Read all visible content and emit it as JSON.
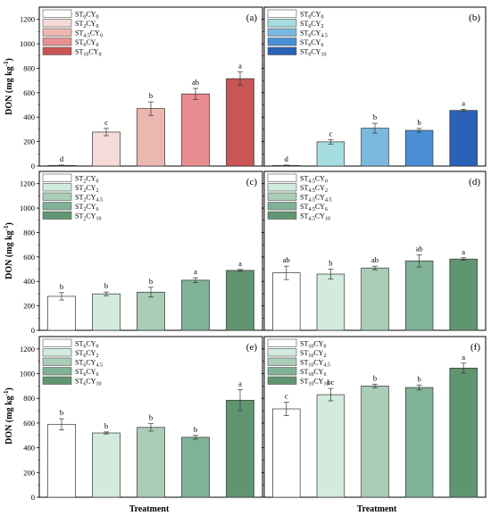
{
  "figure": {
    "ylabel": "DON (mg kg",
    "ylabel_sup": "-1",
    "ylabel_end": ")",
    "xlabel": "Treatment"
  },
  "chart_data": [
    {
      "type": "bar",
      "panel_label": "(a)",
      "ylim": [
        0,
        1300
      ],
      "yticks": [
        0,
        200,
        400,
        600,
        800,
        1000,
        1200
      ],
      "legend": "top-left",
      "categories": [
        {
          "main": "ST",
          "s1": "0",
          "mid": "CY",
          "s2": "0"
        },
        {
          "main": "ST",
          "s1": "2",
          "mid": "CY",
          "s2": "0"
        },
        {
          "main": "ST",
          "s1": "4.5",
          "mid": "CY",
          "s2": "0"
        },
        {
          "main": "ST",
          "s1": "6",
          "mid": "CY",
          "s2": "0"
        },
        {
          "main": "ST",
          "s1": "10",
          "mid": "CY",
          "s2": "0"
        }
      ],
      "values": [
        5,
        278,
        470,
        590,
        715
      ],
      "errors": [
        3,
        30,
        55,
        45,
        55
      ],
      "significance": [
        "d",
        "c",
        "b",
        "ab",
        "a"
      ],
      "colors": [
        "#ffffff",
        "#f5dcd9",
        "#ecb7b0",
        "#e88e91",
        "#c95555"
      ]
    },
    {
      "type": "bar",
      "panel_label": "(b)",
      "ylim": [
        0,
        1300
      ],
      "yticks": [
        0,
        200,
        400,
        600,
        800,
        1000,
        1200
      ],
      "legend": "top-left",
      "categories": [
        {
          "main": "ST",
          "s1": "0",
          "mid": "CY",
          "s2": "0"
        },
        {
          "main": "ST",
          "s1": "0",
          "mid": "CY",
          "s2": "2"
        },
        {
          "main": "ST",
          "s1": "0",
          "mid": "CY",
          "s2": "4.5"
        },
        {
          "main": "ST",
          "s1": "0",
          "mid": "CY",
          "s2": "6"
        },
        {
          "main": "ST",
          "s1": "0",
          "mid": "CY",
          "s2": "10"
        }
      ],
      "values": [
        5,
        198,
        310,
        292,
        455
      ],
      "errors": [
        3,
        18,
        40,
        15,
        10
      ],
      "significance": [
        "d",
        "c",
        "b",
        "b",
        "a"
      ],
      "colors": [
        "#ffffff",
        "#a5dde0",
        "#7ab8df",
        "#4a8fd6",
        "#2a62b5"
      ]
    },
    {
      "type": "bar",
      "panel_label": "(c)",
      "ylim": [
        0,
        1300
      ],
      "yticks": [
        0,
        200,
        400,
        600,
        800,
        1000,
        1200
      ],
      "legend": "top-left",
      "categories": [
        {
          "main": "ST",
          "s1": "2",
          "mid": "CY",
          "s2": "0"
        },
        {
          "main": "ST",
          "s1": "2",
          "mid": "CY",
          "s2": "2"
        },
        {
          "main": "ST",
          "s1": "2",
          "mid": "CY",
          "s2": "4.5"
        },
        {
          "main": "ST",
          "s1": "2",
          "mid": "CY",
          "s2": "6"
        },
        {
          "main": "ST",
          "s1": "2",
          "mid": "CY",
          "s2": "10"
        }
      ],
      "values": [
        278,
        298,
        312,
        410,
        490
      ],
      "errors": [
        30,
        15,
        40,
        20,
        8
      ],
      "significance": [
        "b",
        "b",
        "b",
        "a",
        "a"
      ],
      "colors": [
        "#ffffff",
        "#d2ebdd",
        "#a9cdb7",
        "#80b297",
        "#5f9670"
      ]
    },
    {
      "type": "bar",
      "panel_label": "(d)",
      "ylim": [
        0,
        1300
      ],
      "yticks": [
        0,
        200,
        400,
        600,
        800,
        1000,
        1200
      ],
      "legend": "top-left",
      "categories": [
        {
          "main": "ST",
          "s1": "4.5",
          "mid": "CY",
          "s2": "0"
        },
        {
          "main": "ST",
          "s1": "4.5",
          "mid": "CY",
          "s2": "2"
        },
        {
          "main": "ST",
          "s1": "4.5",
          "mid": "CY",
          "s2": "4.5"
        },
        {
          "main": "ST",
          "s1": "4.5",
          "mid": "CY",
          "s2": "6"
        },
        {
          "main": "ST",
          "s1": "4.5",
          "mid": "CY",
          "s2": "10"
        }
      ],
      "values": [
        470,
        460,
        510,
        568,
        583
      ],
      "errors": [
        55,
        40,
        15,
        50,
        10
      ],
      "significance": [
        "ab",
        "b",
        "ab",
        "ab",
        "a"
      ],
      "colors": [
        "#ffffff",
        "#d2ebdd",
        "#a9cdb7",
        "#80b297",
        "#5f9670"
      ]
    },
    {
      "type": "bar",
      "panel_label": "(e)",
      "ylim": [
        0,
        1300
      ],
      "yticks": [
        0,
        200,
        400,
        600,
        800,
        1000,
        1200
      ],
      "legend": "top-left",
      "categories": [
        {
          "main": "ST",
          "s1": "6",
          "mid": "CY",
          "s2": "0"
        },
        {
          "main": "ST",
          "s1": "6",
          "mid": "CY",
          "s2": "2"
        },
        {
          "main": "ST",
          "s1": "6",
          "mid": "CY",
          "s2": "4.5"
        },
        {
          "main": "ST",
          "s1": "6",
          "mid": "CY",
          "s2": "6"
        },
        {
          "main": "ST",
          "s1": "6",
          "mid": "CY",
          "s2": "10"
        }
      ],
      "values": [
        590,
        520,
        565,
        485,
        785
      ],
      "errors": [
        45,
        8,
        30,
        15,
        85
      ],
      "significance": [
        "b",
        "b",
        "b",
        "b",
        "a"
      ],
      "colors": [
        "#ffffff",
        "#d2ebdd",
        "#a9cdb7",
        "#80b297",
        "#5f9670"
      ]
    },
    {
      "type": "bar",
      "panel_label": "(f)",
      "ylim": [
        0,
        1300
      ],
      "yticks": [
        0,
        200,
        400,
        600,
        800,
        1000,
        1200
      ],
      "legend": "top-left",
      "categories": [
        {
          "main": "ST",
          "s1": "10",
          "mid": "CY",
          "s2": "0"
        },
        {
          "main": "ST",
          "s1": "10",
          "mid": "CY",
          "s2": "2"
        },
        {
          "main": "ST",
          "s1": "10",
          "mid": "CY",
          "s2": "4.5"
        },
        {
          "main": "ST",
          "s1": "10",
          "mid": "CY",
          "s2": "6"
        },
        {
          "main": "ST",
          "s1": "10",
          "mid": "CY",
          "s2": "10"
        }
      ],
      "values": [
        715,
        830,
        900,
        888,
        1045
      ],
      "errors": [
        55,
        50,
        15,
        20,
        40
      ],
      "significance": [
        "c",
        "bc",
        "b",
        "b",
        "a"
      ],
      "colors": [
        "#ffffff",
        "#d2ebdd",
        "#a9cdb7",
        "#80b297",
        "#5f9670"
      ]
    }
  ]
}
